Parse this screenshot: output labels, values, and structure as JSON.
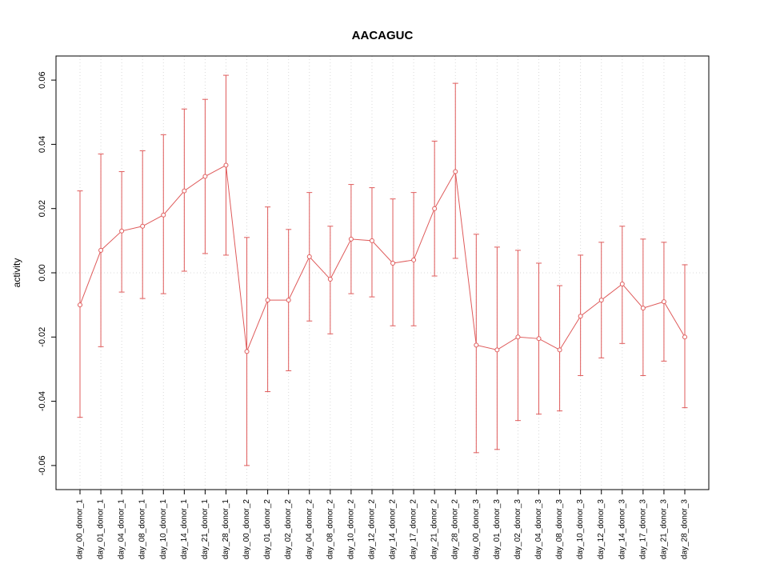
{
  "chart_data": {
    "type": "line",
    "title": "AACAGUC",
    "ylabel": "activity",
    "xlabel": "",
    "ylim": [
      -0.0675,
      0.0675
    ],
    "yticks": [
      -0.06,
      -0.04,
      -0.02,
      0.0,
      0.02,
      0.04,
      0.06
    ],
    "grid": "vertical-dotted-per-category-plus-dotted-zero-line",
    "legend": "none",
    "point_style": "open-circle",
    "error_bars": true,
    "colors": {
      "series": "#df5b5b",
      "grid": "#d9d9d9",
      "axis": "#000000"
    },
    "categories": [
      "day_00_donor_1",
      "day_01_donor_1",
      "day_04_donor_1",
      "day_08_donor_1",
      "day_10_donor_1",
      "day_14_donor_1",
      "day_21_donor_1",
      "day_28_donor_1",
      "day_00_donor_2",
      "day_01_donor_2",
      "day_02_donor_2",
      "day_04_donor_2",
      "day_08_donor_2",
      "day_10_donor_2",
      "day_12_donor_2",
      "day_14_donor_2",
      "day_17_donor_2",
      "day_21_donor_2",
      "day_28_donor_2",
      "day_00_donor_3",
      "day_01_donor_3",
      "day_02_donor_3",
      "day_04_donor_3",
      "day_08_donor_3",
      "day_10_donor_3",
      "day_12_donor_3",
      "day_14_donor_3",
      "day_17_donor_3",
      "day_21_donor_3",
      "day_28_donor_3"
    ],
    "values": [
      -0.01,
      0.007,
      0.013,
      0.0145,
      0.018,
      0.0255,
      0.03,
      0.0335,
      -0.0245,
      -0.0085,
      -0.0085,
      0.005,
      -0.002,
      0.0105,
      0.01,
      0.003,
      0.004,
      0.02,
      0.0315,
      -0.0225,
      -0.024,
      -0.02,
      -0.0205,
      -0.024,
      -0.0135,
      -0.0085,
      -0.0035,
      -0.011,
      -0.009,
      -0.02
    ],
    "error_low": [
      -0.045,
      -0.023,
      -0.006,
      -0.008,
      -0.0065,
      0.0005,
      0.006,
      0.0055,
      -0.06,
      -0.037,
      -0.0305,
      -0.015,
      -0.019,
      -0.0065,
      -0.0075,
      -0.0165,
      -0.0165,
      -0.001,
      0.0045,
      -0.056,
      -0.055,
      -0.046,
      -0.044,
      -0.043,
      -0.032,
      -0.0265,
      -0.022,
      -0.032,
      -0.0275,
      -0.042
    ],
    "error_high": [
      0.0255,
      0.037,
      0.0315,
      0.038,
      0.043,
      0.051,
      0.054,
      0.0615,
      0.011,
      0.0205,
      0.0135,
      0.025,
      0.0145,
      0.0275,
      0.0265,
      0.023,
      0.025,
      0.041,
      0.059,
      0.012,
      0.008,
      0.007,
      0.003,
      -0.004,
      0.0055,
      0.0095,
      0.0145,
      0.0105,
      0.0095,
      0.0025
    ]
  }
}
